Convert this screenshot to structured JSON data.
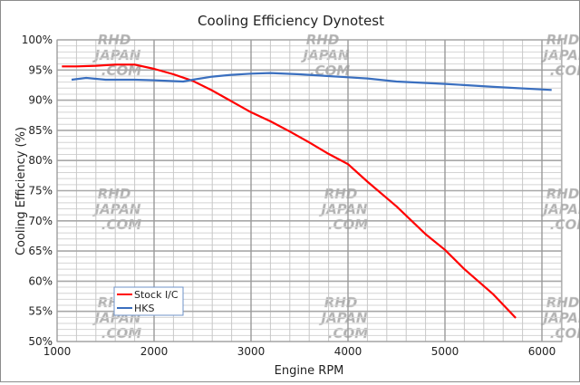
{
  "chart_data": {
    "type": "line",
    "title": "Cooling Efficiency Dynotest",
    "xlabel": "Engine RPM",
    "ylabel": "Cooling Efficiency (%)",
    "xlim": [
      1000,
      6200
    ],
    "ylim": [
      50,
      100
    ],
    "x_ticks": [
      1000,
      2000,
      3000,
      4000,
      5000,
      6000
    ],
    "x_tick_labels": [
      "1000",
      "2000",
      "3000",
      "4000",
      "5000",
      "6000"
    ],
    "x_minor_step": 200,
    "y_ticks": [
      50,
      55,
      60,
      65,
      70,
      75,
      80,
      85,
      90,
      95,
      100
    ],
    "y_tick_labels": [
      "50%",
      "55%",
      "60%",
      "65%",
      "70%",
      "75%",
      "80%",
      "85%",
      "90%",
      "95%",
      "100%"
    ],
    "y_minor_step": 1,
    "grid": true,
    "legend_position": "lower-left",
    "watermark": [
      "RHD",
      "JAPAN",
      ".COM"
    ],
    "series": [
      {
        "name": "Stock I/C",
        "color": "#ff0000",
        "x": [
          1050,
          1200,
          1400,
          1600,
          1800,
          2000,
          2200,
          2400,
          2600,
          2800,
          3000,
          3200,
          3400,
          3600,
          3800,
          4000,
          4200,
          4500,
          4800,
          5000,
          5200,
          5500,
          5730
        ],
        "y": [
          95.6,
          95.6,
          95.7,
          95.9,
          95.9,
          95.2,
          94.3,
          93.2,
          91.6,
          89.8,
          88.0,
          86.5,
          84.8,
          83.0,
          81.1,
          79.4,
          76.5,
          72.4,
          67.8,
          65.2,
          62.0,
          57.8,
          53.9
        ]
      },
      {
        "name": "HKS",
        "color": "#3a6fbf",
        "x": [
          1150,
          1300,
          1500,
          1800,
          2000,
          2300,
          2400,
          2600,
          2800,
          3000,
          3200,
          3500,
          3800,
          4000,
          4200,
          4500,
          5000,
          5500,
          6100
        ],
        "y": [
          93.4,
          93.7,
          93.4,
          93.4,
          93.3,
          93.1,
          93.4,
          93.9,
          94.2,
          94.4,
          94.5,
          94.3,
          94.0,
          93.8,
          93.6,
          93.1,
          92.7,
          92.2,
          91.7
        ]
      }
    ]
  }
}
